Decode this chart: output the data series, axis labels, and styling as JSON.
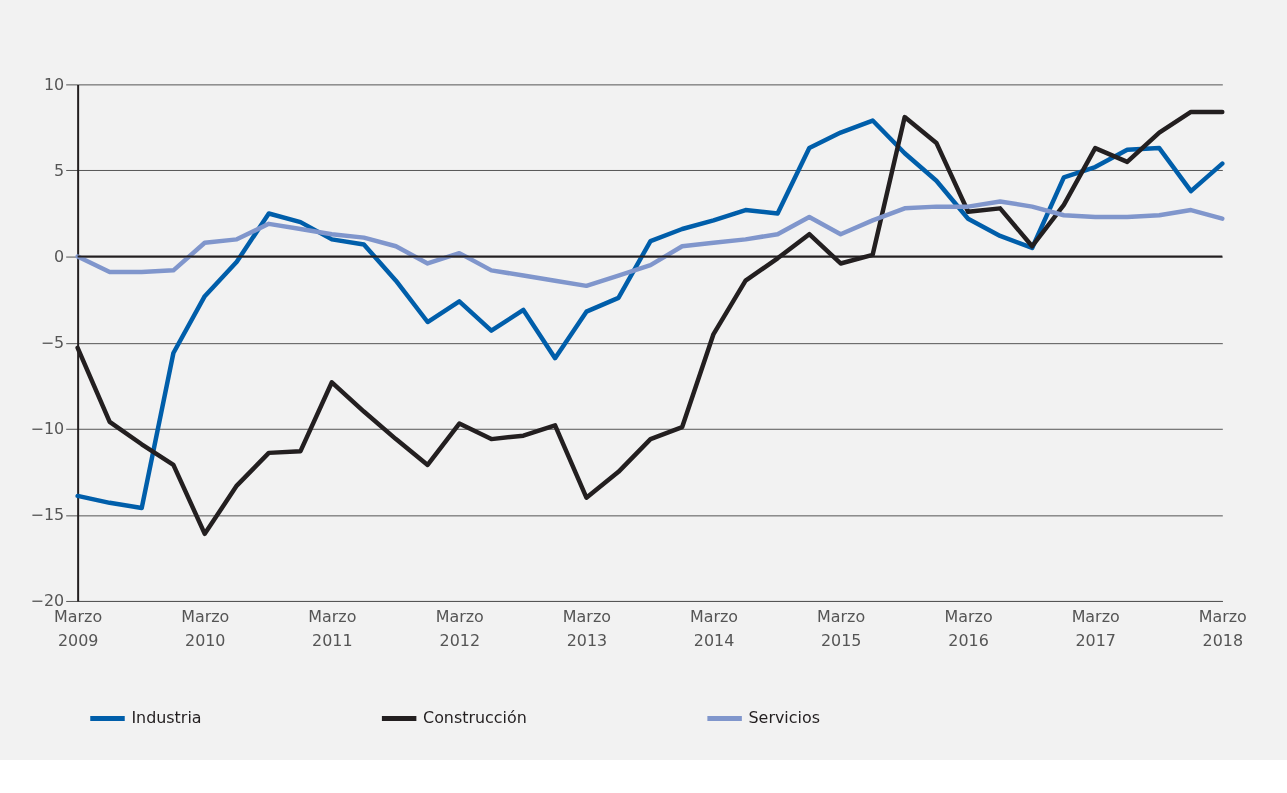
{
  "chart_data": {
    "type": "line",
    "x": [
      "2009-03",
      "2009-06",
      "2009-09",
      "2009-12",
      "2010-03",
      "2010-06",
      "2010-09",
      "2010-12",
      "2011-03",
      "2011-06",
      "2011-09",
      "2011-12",
      "2012-03",
      "2012-06",
      "2012-09",
      "2012-12",
      "2013-03",
      "2013-06",
      "2013-09",
      "2013-12",
      "2014-03",
      "2014-06",
      "2014-09",
      "2014-12",
      "2015-03",
      "2015-06",
      "2015-09",
      "2015-12",
      "2016-03",
      "2016-06",
      "2016-09",
      "2016-12",
      "2017-03",
      "2017-06",
      "2017-09",
      "2017-12",
      "2018-03"
    ],
    "xlim": [
      "2009-03",
      "2018-03"
    ],
    "xticks": [
      {
        "value": "2009-03",
        "label": "Marzo 2009"
      },
      {
        "value": "2010-03",
        "label": "Marzo 2010"
      },
      {
        "value": "2011-03",
        "label": "Marzo 2011"
      },
      {
        "value": "2012-03",
        "label": "Marzo 2012"
      },
      {
        "value": "2013-03",
        "label": "Marzo 2013"
      },
      {
        "value": "2014-03",
        "label": "Marzo 2014"
      },
      {
        "value": "2015-03",
        "label": "Marzo 2015"
      },
      {
        "value": "2016-03",
        "label": "Marzo 2016"
      },
      {
        "value": "2017-03",
        "label": "Marzo 2017"
      },
      {
        "value": "2018-03",
        "label": "Marzo 2018"
      }
    ],
    "ylim": [
      -20,
      10
    ],
    "yticks": [
      {
        "value": -20,
        "label": "−20"
      },
      {
        "value": -15,
        "label": "−15"
      },
      {
        "value": -10,
        "label": "−10"
      },
      {
        "value": -5,
        "label": "−5"
      },
      0,
      5,
      10
    ],
    "grid": "y",
    "legend": "bottom",
    "ref_lines": [
      {
        "axis": "y",
        "value": 0,
        "color": "#231f20"
      }
    ],
    "series": [
      {
        "name": "Industria",
        "color": "#005eaa",
        "values": [
          -13.9,
          -14.3,
          -14.6,
          -5.6,
          -2.3,
          -0.3,
          2.5,
          2.0,
          1.0,
          0.7,
          -1.4,
          -3.8,
          -2.6,
          -4.3,
          -3.1,
          -5.9,
          -3.2,
          -2.4,
          0.9,
          1.6,
          2.1,
          2.7,
          2.5,
          6.3,
          7.2,
          7.9,
          6.0,
          4.4,
          2.2,
          1.2,
          0.5,
          4.6,
          5.2,
          6.2,
          6.3,
          3.8,
          5.4
        ]
      },
      {
        "name": "Construcción",
        "color": "#231f20",
        "values": [
          -5.3,
          -9.6,
          -10.9,
          -12.1,
          -16.1,
          -13.3,
          -11.4,
          -11.3,
          -7.3,
          -9.0,
          -10.6,
          -12.1,
          -9.7,
          -10.6,
          -10.4,
          -9.8,
          -14.0,
          -12.5,
          -10.6,
          -9.9,
          -4.5,
          -1.4,
          -0.1,
          1.3,
          -0.4,
          0.1,
          8.1,
          6.6,
          2.6,
          2.8,
          0.6,
          3.0,
          6.3,
          5.5,
          7.2,
          8.4,
          8.4
        ]
      },
      {
        "name": "Servicios",
        "color": "#8096cc",
        "values": [
          0.0,
          -0.9,
          -0.9,
          -0.8,
          0.8,
          1.0,
          1.9,
          1.6,
          1.3,
          1.1,
          0.6,
          -0.4,
          0.2,
          -0.8,
          -1.1,
          -1.4,
          -1.7,
          -1.1,
          -0.5,
          0.6,
          0.8,
          1.0,
          1.3,
          2.3,
          1.3,
          2.1,
          2.8,
          2.9,
          2.9,
          3.2,
          2.9,
          2.4,
          2.3,
          2.3,
          2.4,
          2.7,
          2.2
        ]
      }
    ]
  }
}
